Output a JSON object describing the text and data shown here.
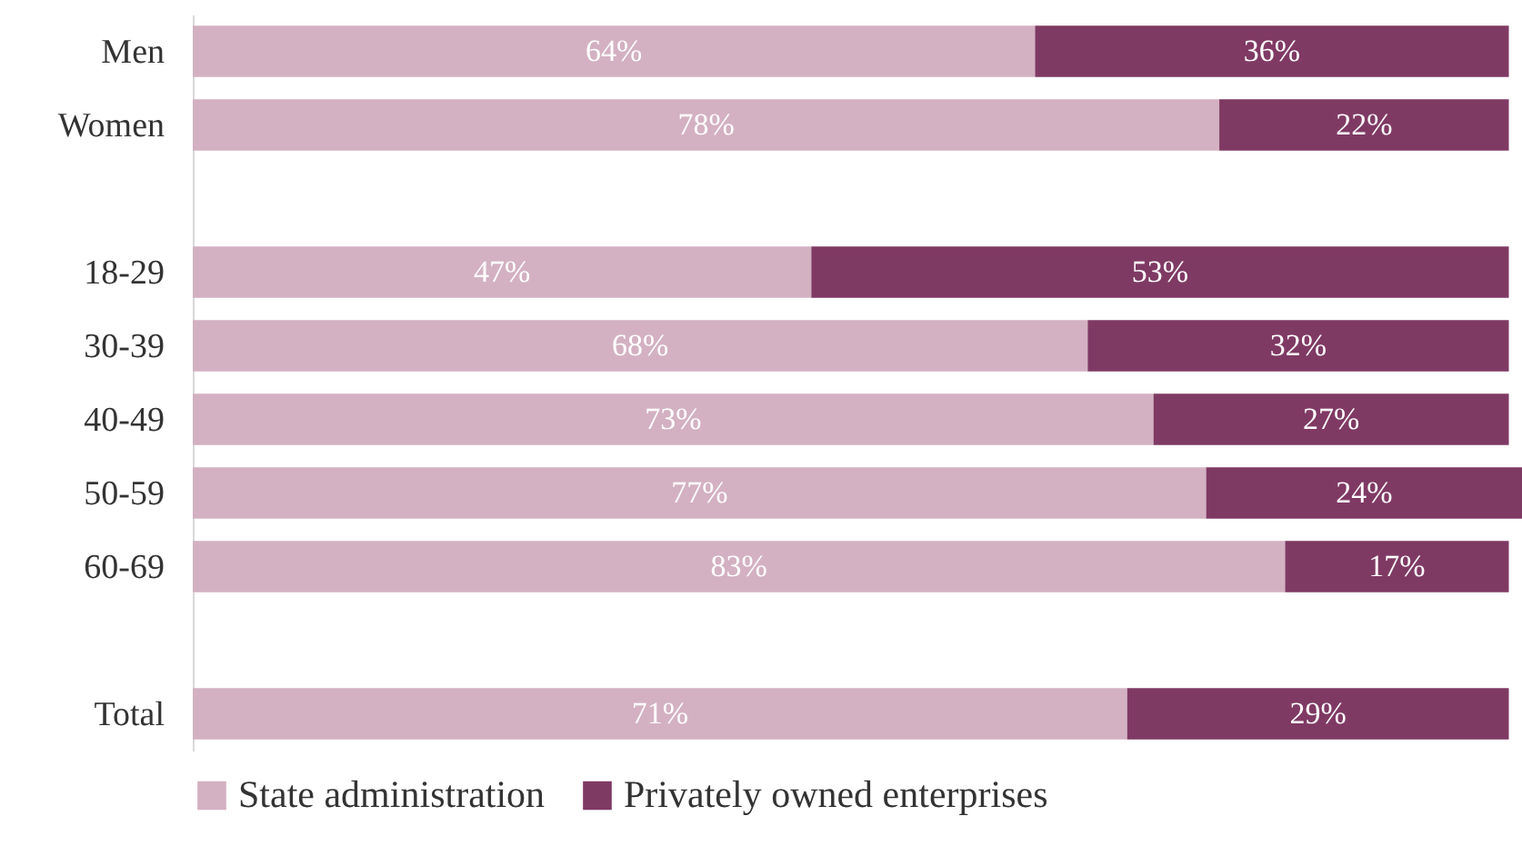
{
  "chart_data": {
    "type": "bar",
    "orientation": "horizontal",
    "stacked": true,
    "legend": "bottom",
    "categories": [
      "Men",
      "Women",
      null,
      "18-29",
      "30-39",
      "40-49",
      "50-59",
      "60-69",
      null,
      "Total"
    ],
    "series": [
      {
        "name": "State administration",
        "color": "#d3b1c2",
        "values": [
          64,
          78,
          null,
          47,
          68,
          73,
          77,
          83,
          null,
          71
        ],
        "value_labels": [
          "64%",
          "78%",
          null,
          "47%",
          "68%",
          "73%",
          "77%",
          "83%",
          null,
          "71%"
        ]
      },
      {
        "name": "Privately owned enterprises",
        "color": "#7f3a64",
        "values": [
          36,
          22,
          null,
          53,
          32,
          27,
          24,
          17,
          null,
          29
        ],
        "value_labels": [
          "36%",
          "22%",
          null,
          "53%",
          "32%",
          "27%",
          "24%",
          "17%",
          null,
          "29%"
        ]
      }
    ]
  }
}
